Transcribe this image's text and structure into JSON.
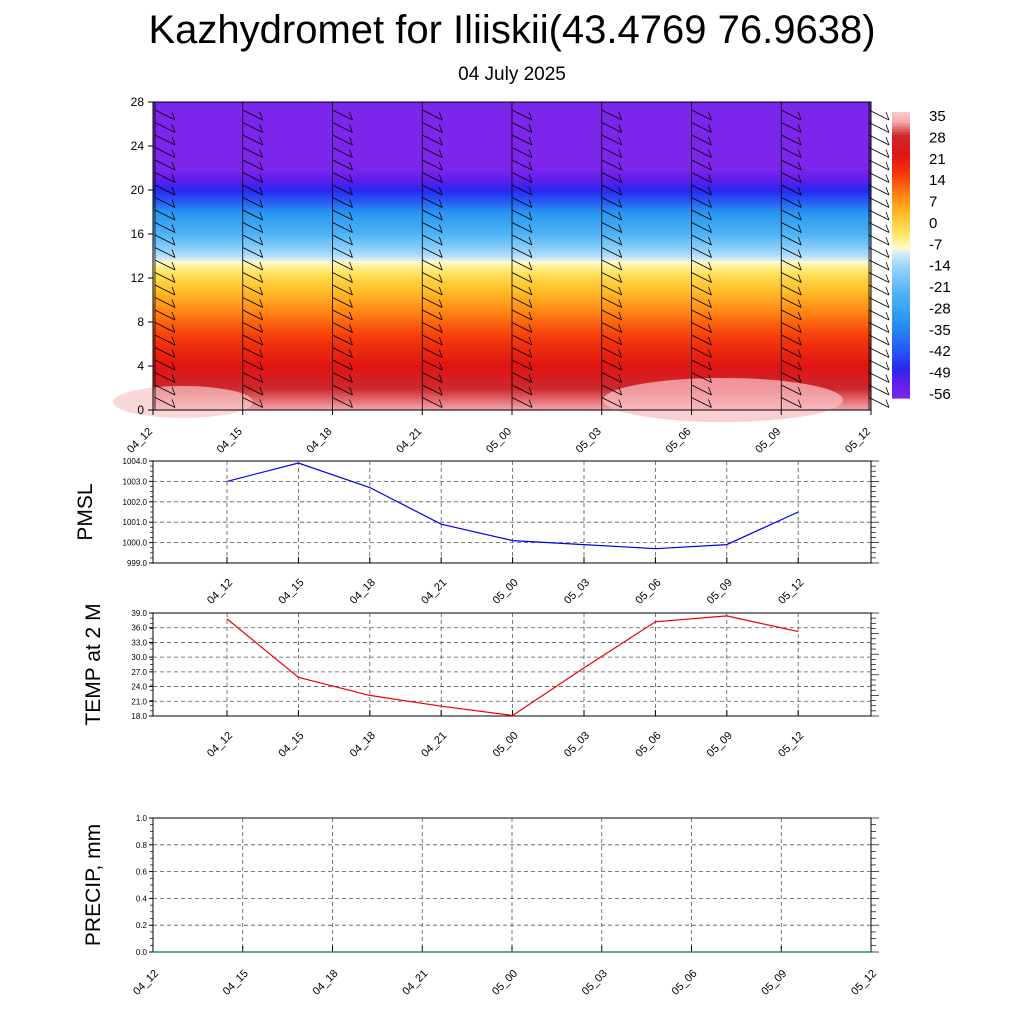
{
  "header": {
    "title": "Kazhydromet for Iliiskii(43.4769 76.9638)",
    "subtitle": "04 July 2025"
  },
  "chart_data": [
    {
      "type": "heatmap",
      "title": "",
      "xlabel": "",
      "ylabel": "",
      "x_ticks": [
        "04_12",
        "04_15",
        "04_18",
        "04_21",
        "05_00",
        "05_03",
        "05_06",
        "05_09",
        "05_12"
      ],
      "y_ticks": [
        0,
        4,
        8,
        12,
        16,
        20,
        24,
        28
      ],
      "ylim": [
        0,
        28
      ],
      "colorbar_labels": [
        "35",
        "28",
        "21",
        "14",
        "7",
        "0",
        "-7",
        "-14",
        "-21",
        "-28",
        "-35",
        "-42",
        "-49",
        "-56"
      ],
      "profile_levels": [
        0,
        2,
        4,
        6,
        8,
        10,
        12,
        13.5,
        14,
        16,
        18,
        19,
        20,
        21,
        22,
        28
      ],
      "profile_values": [
        33,
        28,
        21,
        16,
        10,
        3,
        -4,
        -12,
        -16,
        -28,
        -38,
        -48,
        -55,
        -60,
        -66,
        -66
      ],
      "wind_barbs": true
    },
    {
      "type": "line",
      "ylabel": "PMSL",
      "x_ticks": [
        "04_12",
        "04_15",
        "04_18",
        "04_21",
        "05_00",
        "05_03",
        "05_06",
        "05_09",
        "05_12"
      ],
      "y_ticks": [
        "999.0",
        "1000.0",
        "1001.0",
        "1002.0",
        "1003.0",
        "1004.0"
      ],
      "ylim": [
        999.0,
        1004.0
      ],
      "series": [
        {
          "color": "#0000ee",
          "values": [
            1003.0,
            1003.9,
            1002.7,
            1000.9,
            1000.1,
            999.9,
            999.7,
            999.9,
            1001.5
          ]
        }
      ],
      "grid": true
    },
    {
      "type": "line",
      "ylabel": "TEMP at 2 M",
      "x_ticks": [
        "04_12",
        "04_15",
        "04_18",
        "04_21",
        "05_00",
        "05_03",
        "05_06",
        "05_09",
        "05_12"
      ],
      "y_ticks": [
        "18.0",
        "21.0",
        "24.0",
        "27.0",
        "30.0",
        "33.0",
        "36.0",
        "39.0"
      ],
      "ylim": [
        18.0,
        39.0
      ],
      "series": [
        {
          "color": "#ee0000",
          "values": [
            37.8,
            25.9,
            22.2,
            20.0,
            18.1,
            27.8,
            37.2,
            38.4,
            35.2
          ]
        }
      ],
      "grid": true
    },
    {
      "type": "line",
      "ylabel": "PRECIP, mm",
      "x_ticks": [
        "04_12",
        "04_15",
        "04_18",
        "04_21",
        "05_00",
        "05_03",
        "05_06",
        "05_09",
        "05_12"
      ],
      "y_ticks": [
        "0.0",
        "0.2",
        "0.4",
        "0.6",
        "0.8",
        "1.0"
      ],
      "ylim": [
        0.0,
        1.0
      ],
      "series": [
        {
          "color": "#2e8b57",
          "values": [
            0,
            0,
            0,
            0,
            0,
            0,
            0,
            0,
            0
          ]
        }
      ],
      "grid": true
    }
  ]
}
